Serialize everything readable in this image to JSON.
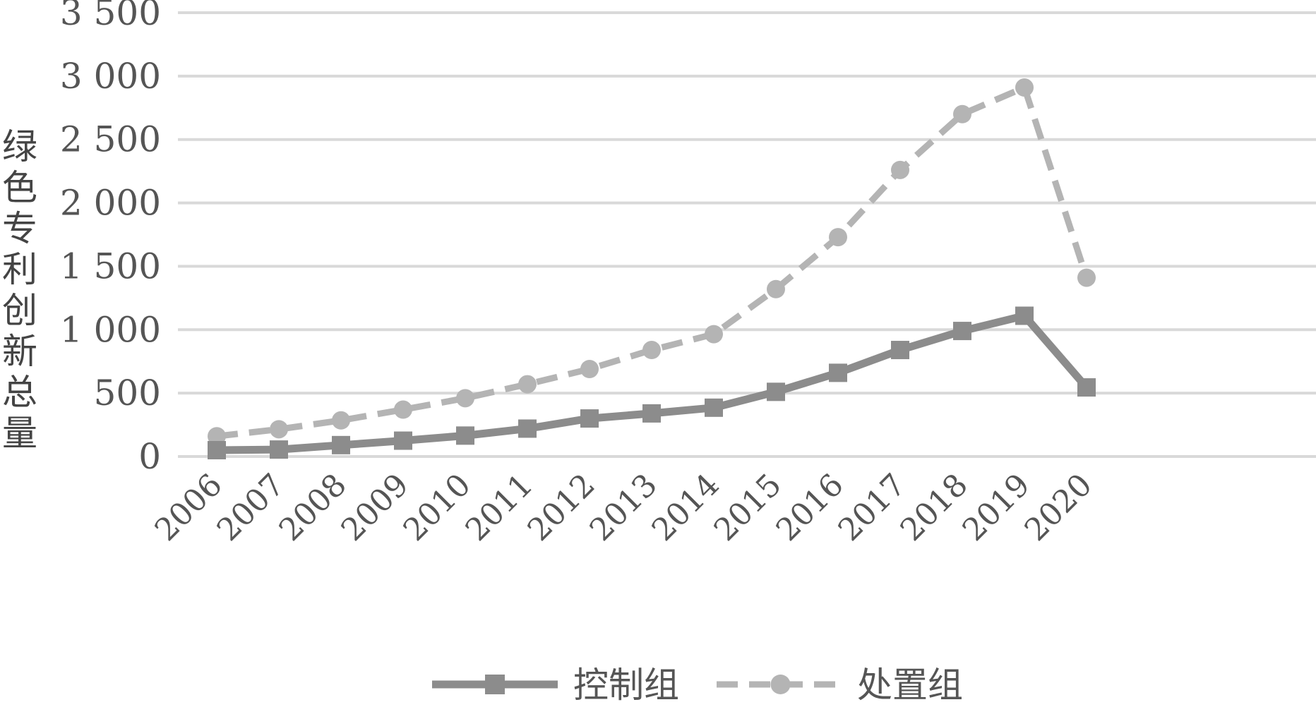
{
  "chart_data": {
    "type": "line",
    "title": "",
    "xlabel": "",
    "ylabel": "绿色专利创新总量",
    "categories": [
      "2006",
      "2007",
      "2008",
      "2009",
      "2010",
      "2011",
      "2012",
      "2013",
      "2014",
      "2015",
      "2016",
      "2017",
      "2018",
      "2019",
      "2020"
    ],
    "ylim": [
      0,
      3500
    ],
    "yticks": [
      0,
      500,
      1000,
      1500,
      2000,
      2500,
      3000,
      3500
    ],
    "ytick_labels": [
      "0",
      "500",
      "1 000",
      "1 500",
      "2 000",
      "2 500",
      "3 000",
      "3 500"
    ],
    "grid": true,
    "legend_position": "bottom",
    "series": [
      {
        "name": "控制组",
        "values": [
          50,
          55,
          90,
          125,
          165,
          220,
          300,
          340,
          385,
          510,
          660,
          840,
          990,
          1110,
          545
        ],
        "style": "solid",
        "marker": "square",
        "color": "#8c8c8c"
      },
      {
        "name": "处置组",
        "values": [
          160,
          215,
          285,
          370,
          460,
          570,
          690,
          840,
          965,
          1320,
          1730,
          2260,
          2700,
          2910,
          1410
        ],
        "style": "dashed",
        "marker": "circle",
        "color": "#b4b4b4"
      }
    ]
  }
}
